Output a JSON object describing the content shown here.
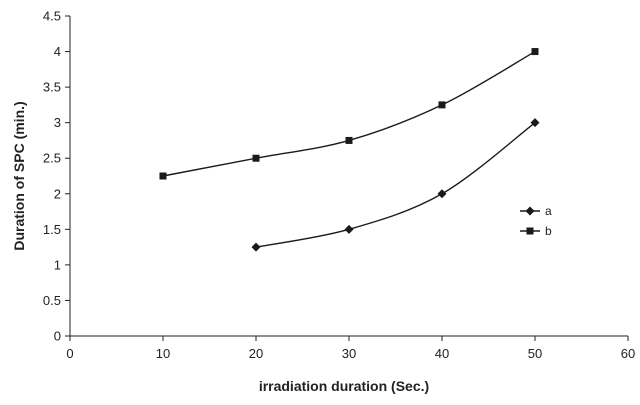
{
  "chart_data": {
    "type": "line",
    "title": "",
    "xlabel": "irradiation duration (Sec.)",
    "ylabel": "Duration of SPC (min.)",
    "xlim": [
      0,
      60
    ],
    "ylim": [
      0,
      4.5
    ],
    "x_ticks": [
      "0",
      "10",
      "20",
      "30",
      "40",
      "50",
      "60"
    ],
    "y_ticks": [
      "0",
      "0.5",
      "1",
      "1.5",
      "2",
      "2.5",
      "3",
      "3.5",
      "4",
      "4.5"
    ],
    "grid": false,
    "legend_position": "right",
    "series": [
      {
        "name": "a",
        "marker": "diamond",
        "color": "#1a1a1a",
        "x": [
          20,
          30,
          40,
          50
        ],
        "y": [
          1.25,
          1.5,
          2.0,
          3.0
        ]
      },
      {
        "name": "b",
        "marker": "square",
        "color": "#1a1a1a",
        "x": [
          10,
          20,
          30,
          40,
          50
        ],
        "y": [
          2.25,
          2.5,
          2.75,
          3.25,
          4.0
        ]
      }
    ]
  }
}
